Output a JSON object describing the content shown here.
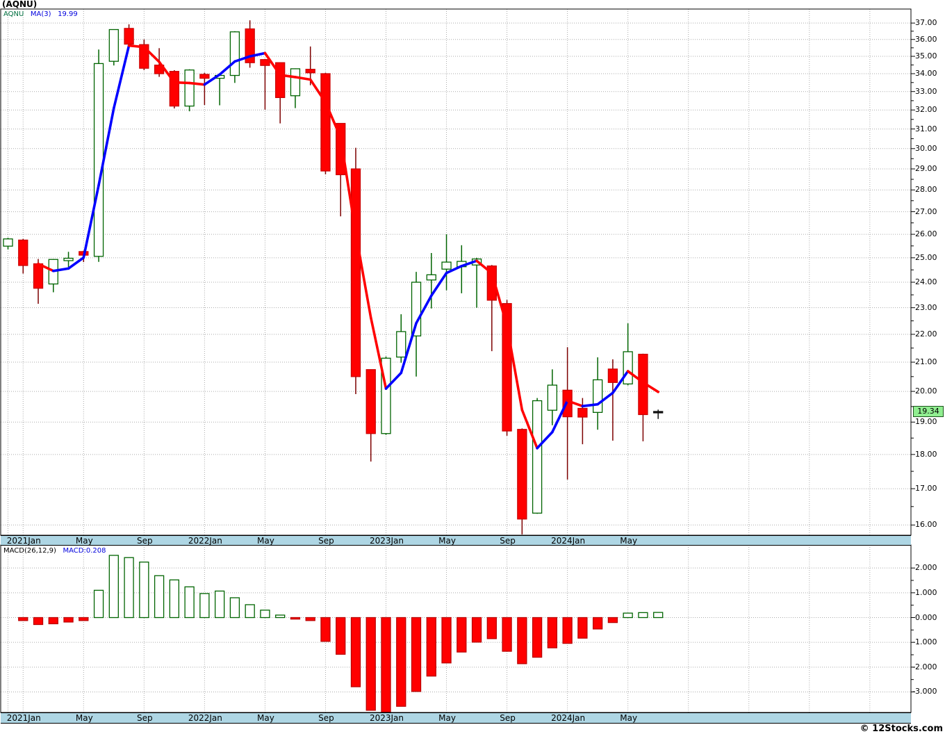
{
  "title": "(AQNU)",
  "copyright": "© 12Stocks.com",
  "legend": {
    "symbol": "AQNU",
    "ma_label": "MA(3)",
    "ma_value": "19.99"
  },
  "macd_legend": {
    "name": "MACD(26,12,9)",
    "value_label": "MACD:0.208"
  },
  "last_price_label": "19.34",
  "colors": {
    "up_fill": "#ffffff",
    "up_border": "#006400",
    "up_wick": "#006400",
    "down_fill": "#ff0000",
    "down_border": "#cc0000",
    "down_wick": "#7d0000",
    "neutral": "#111111",
    "ma_up": "#0000ff",
    "ma_down": "#ff0000",
    "grid": "#aaaaaa",
    "border": "#000000",
    "axis_band": "#aed6e4",
    "last_price_bg": "#90ee90",
    "legend_symbol": "#007040",
    "legend_blue": "#0000dd",
    "macd_pos_fill": "#ffffff",
    "macd_pos_border": "#006400",
    "macd_neg_fill": "#ff0000",
    "macd_neg_border": "#bb0000"
  },
  "chart_data": [
    {
      "type": "candlestick",
      "title": "(AQNU)",
      "y_scale": "log",
      "ylim": [
        15.7,
        37.9
      ],
      "grid": "dotted",
      "ma_period": 3,
      "ma_last": 19.99,
      "last_close": 19.34,
      "price_tick_labels": [
        "37.00",
        "36.00",
        "35.00",
        "34.00",
        "33.00",
        "32.00",
        "31.00",
        "30.00",
        "29.00",
        "28.00",
        "27.00",
        "26.00",
        "25.00",
        "24.00",
        "23.00",
        "22.00",
        "21.00",
        "20.00",
        "19.00",
        "18.00",
        "17.00",
        "16.00"
      ],
      "x_tick_labels": [
        [
          1,
          "2021Jan"
        ],
        [
          5,
          "May"
        ],
        [
          9,
          "Sep"
        ],
        [
          13,
          "2022Jan"
        ],
        [
          17,
          "May"
        ],
        [
          21,
          "Sep"
        ],
        [
          25,
          "2023Jan"
        ],
        [
          29,
          "May"
        ],
        [
          33,
          "Sep"
        ],
        [
          37,
          "2024Jan"
        ],
        [
          41,
          "May"
        ]
      ],
      "candles": [
        [
          "2020Dec",
          25.49,
          25.85,
          25.35,
          25.8,
          "g"
        ],
        [
          "2021Jan",
          25.75,
          25.8,
          24.35,
          24.68,
          "r"
        ],
        [
          "2021Feb",
          24.75,
          24.95,
          23.15,
          23.76,
          "r"
        ],
        [
          "2021Mar",
          23.93,
          24.95,
          23.6,
          24.93,
          "g"
        ],
        [
          "2021Apr",
          24.88,
          25.25,
          24.62,
          24.98,
          "g"
        ],
        [
          "2021May",
          25.26,
          25.3,
          24.82,
          25.11,
          "r"
        ],
        [
          "2021Jun",
          25.06,
          35.4,
          24.83,
          34.58,
          "g"
        ],
        [
          "2021Jul",
          34.71,
          36.6,
          34.47,
          36.6,
          "g"
        ],
        [
          "2021Aug",
          36.67,
          36.92,
          35.5,
          35.72,
          "r"
        ],
        [
          "2021Sep",
          35.69,
          36.0,
          34.2,
          34.31,
          "r"
        ],
        [
          "2021Oct",
          34.49,
          35.48,
          33.82,
          34.0,
          "r"
        ],
        [
          "2021Nov",
          34.13,
          34.2,
          32.08,
          32.21,
          "r"
        ],
        [
          "2021Dec",
          32.21,
          34.25,
          31.93,
          34.21,
          "g"
        ],
        [
          "2022Jan",
          33.96,
          34.05,
          32.27,
          33.74,
          "r"
        ],
        [
          "2022Feb",
          33.74,
          33.95,
          32.25,
          33.9,
          "g"
        ],
        [
          "2022Mar",
          33.9,
          36.5,
          33.48,
          36.46,
          "g"
        ],
        [
          "2022Apr",
          36.64,
          37.17,
          34.34,
          34.63,
          "r"
        ],
        [
          "2022May",
          34.81,
          34.85,
          32.02,
          34.47,
          "r"
        ],
        [
          "2022Jun",
          34.63,
          34.65,
          31.29,
          32.67,
          "r"
        ],
        [
          "2022Jul",
          32.77,
          34.3,
          32.1,
          34.28,
          "g"
        ],
        [
          "2022Aug",
          34.25,
          35.58,
          33.35,
          34.05,
          "r"
        ],
        [
          "2022Sep",
          34.0,
          34.05,
          28.74,
          28.9,
          "r"
        ],
        [
          "2022Oct",
          31.29,
          31.3,
          26.79,
          28.72,
          "r"
        ],
        [
          "2022Nov",
          29.0,
          30.04,
          19.91,
          20.5,
          "r"
        ],
        [
          "2022Dec",
          20.74,
          20.75,
          17.79,
          18.64,
          "r"
        ],
        [
          "2023Jan",
          18.64,
          21.2,
          18.6,
          21.14,
          "g"
        ],
        [
          "2023Feb",
          21.18,
          22.75,
          20.98,
          22.1,
          "g"
        ],
        [
          "2023Mar",
          21.94,
          24.42,
          20.5,
          24.0,
          "g"
        ],
        [
          "2023Apr",
          24.09,
          25.2,
          22.97,
          24.3,
          "g"
        ],
        [
          "2023May",
          24.53,
          26.0,
          23.68,
          24.82,
          "g"
        ],
        [
          "2023Jun",
          24.63,
          25.53,
          23.56,
          24.85,
          "g"
        ],
        [
          "2023Jul",
          24.7,
          25.0,
          23.0,
          24.95,
          "g"
        ],
        [
          "2023Aug",
          24.66,
          24.7,
          21.39,
          23.29,
          "r"
        ],
        [
          "2023Sep",
          23.16,
          23.3,
          18.57,
          18.72,
          "r"
        ],
        [
          "2023Oct",
          18.77,
          18.8,
          15.75,
          16.16,
          "r"
        ],
        [
          "2023Nov",
          16.32,
          19.78,
          16.3,
          19.69,
          "g"
        ],
        [
          "2023Dec",
          19.38,
          20.75,
          18.9,
          20.21,
          "g"
        ],
        [
          "2024Jan",
          20.04,
          21.53,
          17.26,
          19.17,
          "r"
        ],
        [
          "2024Feb",
          19.44,
          19.78,
          18.31,
          19.16,
          "r"
        ],
        [
          "2024Mar",
          19.31,
          21.17,
          18.76,
          20.39,
          "g"
        ],
        [
          "2024Apr",
          20.76,
          21.1,
          18.42,
          20.3,
          "r"
        ],
        [
          "2024May",
          20.25,
          22.41,
          20.2,
          21.37,
          "g"
        ],
        [
          "2024Jun",
          21.28,
          21.3,
          18.4,
          19.24,
          "r"
        ],
        [
          "2024Jul",
          19.3,
          19.4,
          19.1,
          19.34,
          "n"
        ]
      ]
    },
    {
      "type": "bar",
      "name": "MACD(26,12,9)",
      "last_value": 0.208,
      "ylim": [
        -3.4,
        2.9
      ],
      "macd_tick_labels": [
        "2.000",
        "1.000",
        "0.000",
        "-1.000",
        "-2.000",
        "-3.000"
      ],
      "values": [
        0.0,
        -0.12,
        -0.28,
        -0.25,
        -0.18,
        -0.12,
        1.1,
        2.51,
        2.42,
        2.24,
        1.69,
        1.52,
        1.24,
        0.97,
        1.07,
        0.8,
        0.52,
        0.3,
        0.1,
        -0.06,
        -0.12,
        -0.96,
        -1.48,
        -2.79,
        -3.74,
        -3.82,
        -3.58,
        -2.98,
        -2.36,
        -1.83,
        -1.39,
        -0.99,
        -0.85,
        -1.36,
        -1.86,
        -1.6,
        -1.22,
        -1.04,
        -0.83,
        -0.46,
        -0.2,
        0.18,
        0.2,
        0.208
      ]
    }
  ]
}
